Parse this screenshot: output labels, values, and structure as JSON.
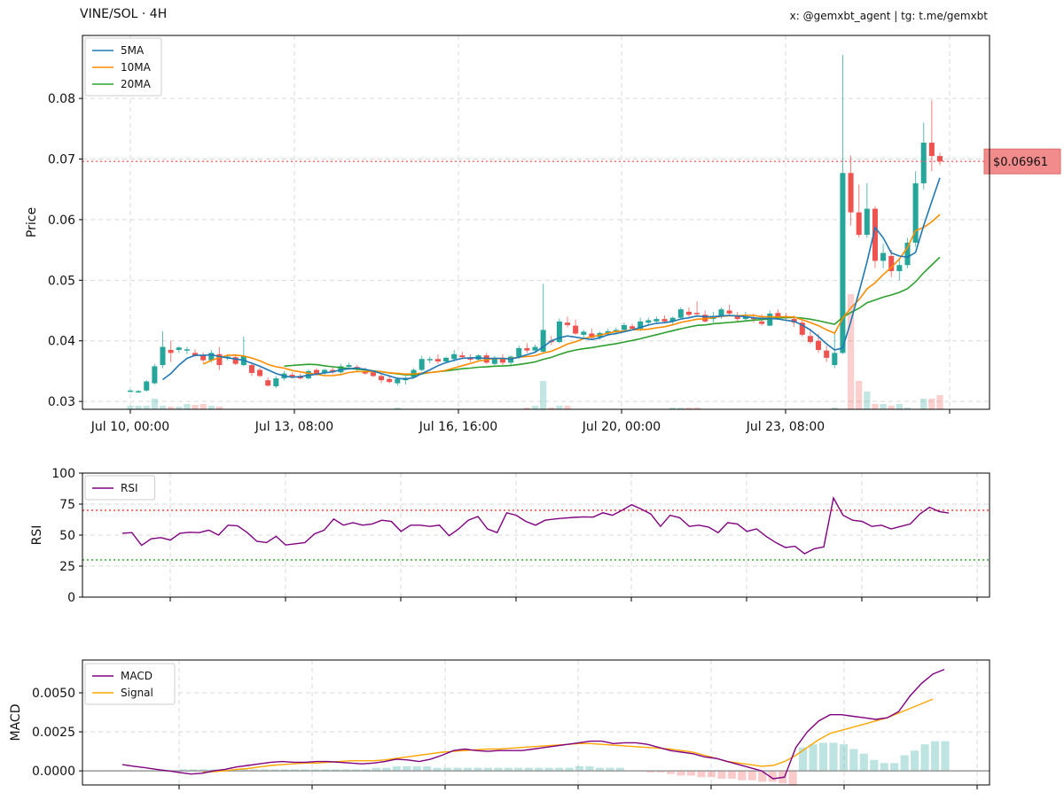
{
  "header": {
    "title": "VINE/SOL · 4H",
    "credit": "x: @gemxbt_agent | tg: t.me/gemxbt"
  },
  "colors": {
    "up": "#26a69a",
    "down": "#ef5350",
    "ma5": "#1f77b4",
    "ma10": "#ff8c00",
    "ma20": "#2ca02c",
    "rsi": "#800080",
    "macd": "#800080",
    "signal": "#ffa500",
    "price_line": "#ff6666"
  },
  "chart_data": [
    {
      "type": "candlestick",
      "name": "price",
      "ylabel": "Price",
      "ylim": [
        0.0287,
        0.0904
      ],
      "yticks": [
        "0.03",
        "0.04",
        "0.05",
        "0.06",
        "0.07",
        "0.08"
      ],
      "xticks": [
        "Jul 10, 00:00",
        "Jul 13, 08:00",
        "Jul 16, 16:00",
        "Jul 20, 00:00",
        "Jul 23, 08:00"
      ],
      "current_price": 0.06961,
      "current_price_label": "$0.06961",
      "legend": [
        "5MA",
        "10MA",
        "20MA"
      ],
      "legend_position": "top-left",
      "grid": true,
      "candles": [
        [
          0.0317,
          0.032,
          0.0315,
          0.0318
        ],
        [
          0.0316,
          0.0319,
          0.0314,
          0.0317
        ],
        [
          0.0318,
          0.0335,
          0.0316,
          0.0333
        ],
        [
          0.033,
          0.0362,
          0.0328,
          0.0358
        ],
        [
          0.036,
          0.0416,
          0.0355,
          0.039
        ],
        [
          0.0385,
          0.04,
          0.0365,
          0.038
        ],
        [
          0.0385,
          0.0391,
          0.038,
          0.0389
        ],
        [
          0.0384,
          0.039,
          0.0378,
          0.0386
        ],
        [
          0.038,
          0.0386,
          0.0374,
          0.0376
        ],
        [
          0.0376,
          0.0381,
          0.0364,
          0.0368
        ],
        [
          0.0368,
          0.0385,
          0.0364,
          0.038
        ],
        [
          0.0378,
          0.039,
          0.0352,
          0.036
        ],
        [
          0.0372,
          0.0378,
          0.0368,
          0.0374
        ],
        [
          0.0373,
          0.0378,
          0.036,
          0.0362
        ],
        [
          0.036,
          0.0407,
          0.0358,
          0.0375
        ],
        [
          0.036,
          0.0365,
          0.0342,
          0.0347
        ],
        [
          0.0352,
          0.0356,
          0.034,
          0.0342
        ],
        [
          0.0335,
          0.034,
          0.0325,
          0.0326
        ],
        [
          0.0325,
          0.0342,
          0.0322,
          0.0338
        ],
        [
          0.0338,
          0.035,
          0.0335,
          0.0346
        ],
        [
          0.0344,
          0.0348,
          0.0338,
          0.0341
        ],
        [
          0.0342,
          0.0346,
          0.0336,
          0.0338
        ],
        [
          0.0338,
          0.0353,
          0.0336,
          0.035
        ],
        [
          0.0352,
          0.0355,
          0.0342,
          0.0346
        ],
        [
          0.0347,
          0.0354,
          0.0344,
          0.0352
        ],
        [
          0.0352,
          0.0356,
          0.0345,
          0.0348
        ],
        [
          0.0348,
          0.0362,
          0.0346,
          0.0358
        ],
        [
          0.0357,
          0.0364,
          0.0352,
          0.036
        ],
        [
          0.0357,
          0.036,
          0.035,
          0.0354
        ],
        [
          0.035,
          0.0356,
          0.0344,
          0.0346
        ],
        [
          0.0348,
          0.0352,
          0.034,
          0.0342
        ],
        [
          0.0342,
          0.0346,
          0.033,
          0.0335
        ],
        [
          0.0337,
          0.0343,
          0.033,
          0.0332
        ],
        [
          0.033,
          0.034,
          0.0326,
          0.0337
        ],
        [
          0.0335,
          0.0342,
          0.0328,
          0.0339
        ],
        [
          0.034,
          0.0355,
          0.0338,
          0.0352
        ],
        [
          0.0352,
          0.0375,
          0.035,
          0.037
        ],
        [
          0.0368,
          0.0374,
          0.0363,
          0.037
        ],
        [
          0.037,
          0.0378,
          0.0362,
          0.0366
        ],
        [
          0.0366,
          0.0374,
          0.0364,
          0.0372
        ],
        [
          0.037,
          0.0385,
          0.0365,
          0.0378
        ],
        [
          0.0376,
          0.0382,
          0.037,
          0.0373
        ],
        [
          0.0372,
          0.0378,
          0.0365,
          0.0369
        ],
        [
          0.0369,
          0.0378,
          0.0367,
          0.0376
        ],
        [
          0.0376,
          0.038,
          0.0362,
          0.0364
        ],
        [
          0.0362,
          0.0375,
          0.036,
          0.0372
        ],
        [
          0.0372,
          0.0378,
          0.036,
          0.0364
        ],
        [
          0.0364,
          0.0376,
          0.0358,
          0.0374
        ],
        [
          0.0374,
          0.0392,
          0.037,
          0.0388
        ],
        [
          0.0388,
          0.0396,
          0.038,
          0.0384
        ],
        [
          0.0384,
          0.0394,
          0.038,
          0.039
        ],
        [
          0.0382,
          0.0494,
          0.038,
          0.0418
        ],
        [
          0.04,
          0.0408,
          0.0393,
          0.0398
        ],
        [
          0.0398,
          0.0437,
          0.0396,
          0.0432
        ],
        [
          0.043,
          0.044,
          0.0422,
          0.0426
        ],
        [
          0.0425,
          0.0435,
          0.041,
          0.0412
        ],
        [
          0.041,
          0.0418,
          0.0405,
          0.0415
        ],
        [
          0.0412,
          0.042,
          0.0402,
          0.0405
        ],
        [
          0.0406,
          0.0415,
          0.0402,
          0.0413
        ],
        [
          0.0412,
          0.042,
          0.0408,
          0.0416
        ],
        [
          0.0414,
          0.0422,
          0.041,
          0.0418
        ],
        [
          0.0418,
          0.043,
          0.0414,
          0.0426
        ],
        [
          0.0424,
          0.0428,
          0.0418,
          0.042
        ],
        [
          0.042,
          0.0438,
          0.0416,
          0.0432
        ],
        [
          0.043,
          0.0438,
          0.0425,
          0.0434
        ],
        [
          0.0432,
          0.044,
          0.0428,
          0.0436
        ],
        [
          0.0436,
          0.0442,
          0.043,
          0.0432
        ],
        [
          0.0432,
          0.044,
          0.0425,
          0.0438
        ],
        [
          0.0438,
          0.0455,
          0.0435,
          0.0452
        ],
        [
          0.0448,
          0.0455,
          0.044,
          0.0443
        ],
        [
          0.0446,
          0.0465,
          0.044,
          0.0444
        ],
        [
          0.0443,
          0.045,
          0.043,
          0.0432
        ],
        [
          0.0436,
          0.0448,
          0.043,
          0.044
        ],
        [
          0.044,
          0.0455,
          0.0436,
          0.0452
        ],
        [
          0.045,
          0.046,
          0.0442,
          0.0445
        ],
        [
          0.0442,
          0.0448,
          0.043,
          0.0436
        ],
        [
          0.0436,
          0.0448,
          0.0432,
          0.044
        ],
        [
          0.0438,
          0.0445,
          0.043,
          0.0436
        ],
        [
          0.0432,
          0.0444,
          0.0425,
          0.0428
        ],
        [
          0.0425,
          0.045,
          0.0424,
          0.0445
        ],
        [
          0.0446,
          0.0452,
          0.0436,
          0.044
        ],
        [
          0.044,
          0.0446,
          0.0432,
          0.0438
        ],
        [
          0.0436,
          0.0442,
          0.0423,
          0.043
        ],
        [
          0.043,
          0.0435,
          0.0407,
          0.041
        ],
        [
          0.0408,
          0.042,
          0.0395,
          0.0398
        ],
        [
          0.04,
          0.0412,
          0.038,
          0.0385
        ],
        [
          0.0384,
          0.0392,
          0.0365,
          0.0372
        ],
        [
          0.036,
          0.0415,
          0.0355,
          0.038
        ],
        [
          0.038,
          0.0872,
          0.0378,
          0.0677
        ],
        [
          0.0677,
          0.0706,
          0.059,
          0.0612
        ],
        [
          0.0612,
          0.0658,
          0.057,
          0.0575
        ],
        [
          0.0575,
          0.066,
          0.057,
          0.0618
        ],
        [
          0.0618,
          0.0622,
          0.052,
          0.0532
        ],
        [
          0.0532,
          0.056,
          0.052,
          0.0545
        ],
        [
          0.054,
          0.055,
          0.0505,
          0.0515
        ],
        [
          0.0515,
          0.0535,
          0.05,
          0.0525
        ],
        [
          0.0525,
          0.057,
          0.052,
          0.0562
        ],
        [
          0.0562,
          0.068,
          0.0555,
          0.066
        ],
        [
          0.066,
          0.076,
          0.065,
          0.0727
        ],
        [
          0.0727,
          0.0797,
          0.068,
          0.0705
        ],
        [
          0.0705,
          0.071,
          0.069,
          0.0696
        ]
      ],
      "ma5": [
        null,
        null,
        null,
        null,
        0.0336,
        0.0346,
        0.036,
        0.0371,
        0.0376,
        0.0376,
        0.0377,
        0.0374,
        0.0372,
        0.037,
        0.0368,
        0.0363,
        0.0358,
        0.0352,
        0.0346,
        0.0342,
        0.034,
        0.0341,
        0.0343,
        0.0345,
        0.0347,
        0.0349,
        0.0352,
        0.0354,
        0.0355,
        0.0353,
        0.035,
        0.0346,
        0.0342,
        0.0338,
        0.0337,
        0.0339,
        0.0346,
        0.0352,
        0.0359,
        0.0364,
        0.0368,
        0.0371,
        0.0372,
        0.0372,
        0.0371,
        0.0371,
        0.0371,
        0.037,
        0.0373,
        0.0377,
        0.0381,
        0.039,
        0.04,
        0.0405,
        0.0408,
        0.0406,
        0.0404,
        0.0402,
        0.0405,
        0.041,
        0.0412,
        0.0415,
        0.0418,
        0.0422,
        0.0426,
        0.0429,
        0.043,
        0.0432,
        0.0436,
        0.0438,
        0.0441,
        0.044,
        0.044,
        0.0441,
        0.0442,
        0.0441,
        0.044,
        0.0438,
        0.0437,
        0.0437,
        0.0436,
        0.0434,
        0.0432,
        0.0426,
        0.0418,
        0.0407,
        0.0395,
        0.0385,
        0.0388,
        0.0432,
        0.048,
        0.053,
        0.0587,
        0.057,
        0.0545,
        0.054,
        0.0538,
        0.0546,
        0.059,
        0.063,
        0.0669
      ]
    },
    {
      "type": "line",
      "name": "rsi",
      "ylabel": "RSI",
      "ylim": [
        0,
        100
      ],
      "yticks": [
        "0",
        "25",
        "50",
        "75",
        "100"
      ],
      "overbought": 70,
      "oversold": 30,
      "legend": [
        "RSI"
      ],
      "legend_position": "top-left",
      "grid": true,
      "values": [
        51.5,
        52,
        41.7,
        47,
        48,
        46,
        51.5,
        52.3,
        52,
        54,
        50,
        58,
        57.5,
        52,
        45,
        44,
        49,
        42,
        43,
        44,
        51,
        54,
        63,
        58,
        60,
        58,
        59,
        62,
        61,
        53,
        58,
        58,
        57,
        58,
        49.5,
        55,
        62,
        65,
        55,
        52,
        68,
        66,
        61,
        58,
        62,
        63,
        63.7,
        64.3,
        64.7,
        64.5,
        68,
        66,
        70,
        74.5,
        71,
        67,
        57,
        66,
        64,
        57,
        58,
        56.5,
        52,
        60,
        59,
        53,
        55,
        49,
        44,
        40,
        41,
        35,
        39,
        40.5,
        80,
        66,
        62,
        61,
        57,
        58,
        55,
        57,
        59,
        67,
        72.5,
        69,
        67.8
      ]
    },
    {
      "type": "line",
      "name": "macd",
      "ylabel": "MACD",
      "ylim": [
        -0.0009,
        0.0071
      ],
      "yticks": [
        "0.0000",
        "0.0025",
        "0.0050"
      ],
      "legend": [
        "MACD",
        "Signal"
      ],
      "legend_position": "top-left",
      "grid": true,
      "macd": [
        0.0004,
        0.0003,
        0.0002,
        0.0001,
        0.0,
        -0.0001,
        -0.0002,
        -0.00015,
        0.0,
        0.0001,
        0.00025,
        0.00035,
        0.00045,
        0.00055,
        0.0006,
        0.00055,
        0.00055,
        0.0006,
        0.0006,
        0.00055,
        0.0005,
        0.00045,
        0.0005,
        0.0006,
        0.00075,
        0.0007,
        0.0006,
        0.00075,
        0.001,
        0.0013,
        0.0014,
        0.0013,
        0.00125,
        0.0013,
        0.0013,
        0.0013,
        0.0014,
        0.0015,
        0.0016,
        0.0017,
        0.0018,
        0.0019,
        0.0019,
        0.00175,
        0.0018,
        0.0018,
        0.0017,
        0.0015,
        0.0013,
        0.0012,
        0.0011,
        0.0009,
        0.0008,
        0.0006,
        0.0004,
        0.0002,
        0.0,
        -0.0005,
        -0.0004,
        0.0015,
        0.0025,
        0.0032,
        0.0036,
        0.0036,
        0.0035,
        0.0034,
        0.0033,
        0.0034,
        0.0038,
        0.0048,
        0.0056,
        0.0062,
        0.0065
      ],
      "signal": [
        null,
        null,
        null,
        null,
        null,
        null,
        null,
        -0.0001,
        -5e-05,
        0.0,
        0.0001,
        0.00015,
        0.00025,
        0.00035,
        0.0004,
        0.00045,
        0.0005,
        0.0005,
        0.00055,
        0.0006,
        0.00065,
        0.00065,
        0.00065,
        0.0007,
        0.0008,
        0.0009,
        0.001,
        0.0011,
        0.0012,
        0.00125,
        0.0013,
        0.00135,
        0.0014,
        0.0014,
        0.00145,
        0.0015,
        0.00155,
        0.0016,
        0.00165,
        0.0017,
        0.00175,
        0.00175,
        0.0017,
        0.00165,
        0.0016,
        0.00155,
        0.0015,
        0.00145,
        0.0014,
        0.0013,
        0.0012,
        0.001,
        0.0008,
        0.0006,
        0.0005,
        0.0004,
        0.0003,
        0.00035,
        0.0006,
        0.001,
        0.0015,
        0.002,
        0.0024,
        0.0026,
        0.0028,
        0.003,
        0.0032,
        0.0034,
        0.0037,
        0.004,
        0.0043,
        0.0046
      ],
      "histogram": [
        0.0,
        0.0,
        0.0,
        0.0,
        0.0,
        0.0,
        0.0,
        0.0,
        0.0001,
        0.0001,
        0.0001,
        0.0001,
        0.0001,
        0.0001,
        0.0001,
        0.0001,
        0.0001,
        0.0001,
        0.0001,
        0.0001,
        0.0001,
        0.0001,
        0.0001,
        0.0001,
        0.0001,
        0.0001,
        0.0001,
        0.0002,
        0.0002,
        0.0003,
        0.0003,
        0.0003,
        0.0003,
        0.0002,
        0.0002,
        0.0002,
        0.0002,
        0.0002,
        0.0002,
        0.0002,
        0.0002,
        0.0002,
        0.0002,
        0.0002,
        0.0002,
        0.0002,
        0.0002,
        0.0003,
        0.0003,
        0.0002,
        0.0002,
        0.0002,
        0.0,
        0.0,
        -0.0001,
        -0.0001,
        -0.0002,
        -0.0003,
        -0.0003,
        -0.0004,
        -0.0004,
        -0.0005,
        -0.0005,
        -0.0006,
        -0.0006,
        -0.0007,
        -0.0007,
        -0.0008,
        -0.0009,
        0.0015,
        0.0017,
        0.0018,
        0.0018,
        0.0017,
        0.0014,
        0.0011,
        0.0007,
        0.0005,
        0.0005,
        0.001,
        0.0013,
        0.0017,
        0.0019,
        0.0019
      ]
    }
  ]
}
